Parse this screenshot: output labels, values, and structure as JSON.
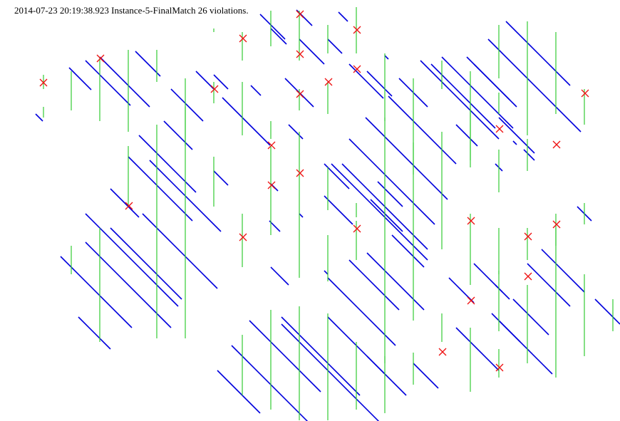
{
  "header": {
    "timestamp": "2014-07-23 20:19:38.923",
    "instance": "Instance-5-FinalMatch",
    "violations_text": "26 violations."
  },
  "colors": {
    "diag": "#0000dd",
    "vert": "#33cc33",
    "violation": "#ee1111"
  }
}
